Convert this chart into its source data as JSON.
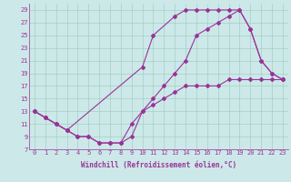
{
  "bg_color": "#cce8e8",
  "line_color": "#993399",
  "line1_x": [
    0,
    1,
    2,
    3,
    10,
    11,
    13,
    14,
    15,
    16,
    17,
    18,
    19,
    20,
    21,
    22,
    23
  ],
  "line1_y": [
    13,
    12,
    11,
    10,
    20,
    25,
    28,
    29,
    29,
    29,
    29,
    29,
    29,
    26,
    21,
    19,
    18
  ],
  "line2_x": [
    0,
    1,
    2,
    3,
    4,
    5,
    6,
    7,
    8,
    9,
    10,
    11,
    12,
    13,
    14,
    15,
    16,
    17,
    18,
    19,
    20,
    21,
    22,
    23
  ],
  "line2_y": [
    13,
    12,
    11,
    10,
    9,
    9,
    8,
    8,
    8,
    11,
    13,
    15,
    17,
    19,
    21,
    25,
    26,
    27,
    28,
    29,
    26,
    21,
    19,
    18
  ],
  "line3_x": [
    0,
    1,
    2,
    3,
    4,
    5,
    6,
    7,
    8,
    9,
    10,
    11,
    12,
    13,
    14,
    15,
    16,
    17,
    18,
    19,
    20,
    21,
    22,
    23
  ],
  "line3_y": [
    13,
    12,
    11,
    10,
    9,
    9,
    8,
    8,
    8,
    9,
    13,
    14,
    15,
    16,
    17,
    17,
    17,
    17,
    18,
    18,
    18,
    18,
    18,
    18
  ],
  "xlim": [
    -0.5,
    23.5
  ],
  "ylim": [
    7,
    30
  ],
  "xticks": [
    0,
    1,
    2,
    3,
    4,
    5,
    6,
    7,
    8,
    9,
    10,
    11,
    12,
    13,
    14,
    15,
    16,
    17,
    18,
    19,
    20,
    21,
    22,
    23
  ],
  "yticks": [
    7,
    9,
    11,
    13,
    15,
    17,
    19,
    21,
    23,
    25,
    27,
    29
  ],
  "grid_color": "#99ccbb",
  "grid_color2": "#bbddcc",
  "marker": "D",
  "markersize": 2.0,
  "linewidth": 0.8,
  "xlabel": "Windchill (Refroidissement éolien,°C)",
  "xlabel_fontsize": 5.5,
  "tick_fontsize": 5.0
}
